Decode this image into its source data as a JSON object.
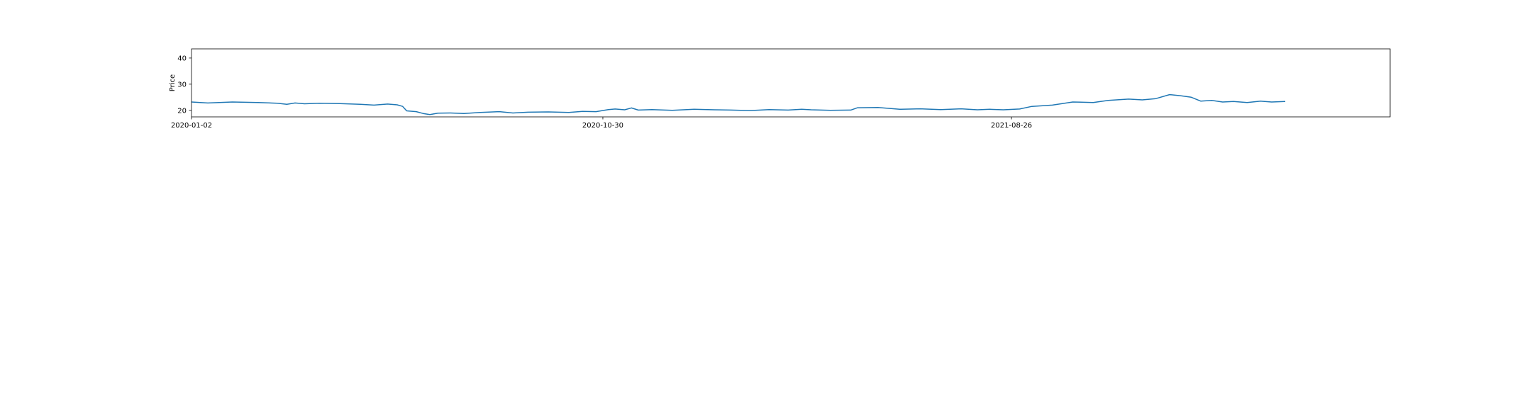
{
  "chart_data": {
    "type": "line",
    "title": "",
    "xlabel": "",
    "ylabel": "Price",
    "ylim": [
      17.5,
      43.5
    ],
    "xlim": [
      "2020-01-02",
      "2022-05-31"
    ],
    "grid": false,
    "legend": "none",
    "y_ticks": [
      20,
      30,
      40
    ],
    "x_ticks": [
      "2020-01-02",
      "2020-10-30",
      "2021-08-26"
    ],
    "series": [
      {
        "name": "",
        "color": "#1f77b4",
        "points": [
          [
            "2020-01-02",
            23.2
          ],
          [
            "2020-01-14",
            22.8
          ],
          [
            "2020-02-01",
            23.2
          ],
          [
            "2020-02-20",
            23.0
          ],
          [
            "2020-03-05",
            22.7
          ],
          [
            "2020-03-12",
            22.3
          ],
          [
            "2020-03-18",
            22.8
          ],
          [
            "2020-03-25",
            22.5
          ],
          [
            "2020-04-05",
            22.7
          ],
          [
            "2020-04-20",
            22.6
          ],
          [
            "2020-05-05",
            22.3
          ],
          [
            "2020-05-15",
            22.0
          ],
          [
            "2020-05-25",
            22.4
          ],
          [
            "2020-06-01",
            22.1
          ],
          [
            "2020-06-05",
            21.5
          ],
          [
            "2020-06-08",
            19.8
          ],
          [
            "2020-06-15",
            19.5
          ],
          [
            "2020-06-20",
            18.8
          ],
          [
            "2020-06-25",
            18.4
          ],
          [
            "2020-07-01",
            18.9
          ],
          [
            "2020-07-10",
            19.0
          ],
          [
            "2020-07-20",
            18.8
          ],
          [
            "2020-08-01",
            19.2
          ],
          [
            "2020-08-15",
            19.5
          ],
          [
            "2020-08-25",
            19.0
          ],
          [
            "2020-09-05",
            19.3
          ],
          [
            "2020-09-20",
            19.4
          ],
          [
            "2020-10-05",
            19.2
          ],
          [
            "2020-10-15",
            19.6
          ],
          [
            "2020-10-25",
            19.5
          ],
          [
            "2020-11-03",
            20.3
          ],
          [
            "2020-11-08",
            20.5
          ],
          [
            "2020-11-15",
            20.2
          ],
          [
            "2020-11-20",
            20.9
          ],
          [
            "2020-11-25",
            20.1
          ],
          [
            "2020-12-05",
            20.3
          ],
          [
            "2020-12-20",
            20.0
          ],
          [
            "2021-01-05",
            20.4
          ],
          [
            "2021-01-20",
            20.2
          ],
          [
            "2021-02-01",
            20.1
          ],
          [
            "2021-02-15",
            19.9
          ],
          [
            "2021-03-01",
            20.3
          ],
          [
            "2021-03-15",
            20.1
          ],
          [
            "2021-03-25",
            20.4
          ],
          [
            "2021-04-01",
            20.2
          ],
          [
            "2021-04-15",
            20.0
          ],
          [
            "2021-04-30",
            20.1
          ],
          [
            "2021-05-05",
            21.0
          ],
          [
            "2021-05-20",
            21.1
          ],
          [
            "2021-06-05",
            20.4
          ],
          [
            "2021-06-20",
            20.6
          ],
          [
            "2021-07-05",
            20.3
          ],
          [
            "2021-07-20",
            20.6
          ],
          [
            "2021-08-01",
            20.2
          ],
          [
            "2021-08-10",
            20.4
          ],
          [
            "2021-08-20",
            20.2
          ],
          [
            "2021-09-01",
            20.5
          ],
          [
            "2021-09-10",
            21.5
          ],
          [
            "2021-09-25",
            22.0
          ],
          [
            "2021-10-10",
            23.2
          ],
          [
            "2021-10-25",
            23.0
          ],
          [
            "2021-11-05",
            23.8
          ],
          [
            "2021-11-20",
            24.3
          ],
          [
            "2021-11-30",
            24.0
          ],
          [
            "2021-12-10",
            24.5
          ],
          [
            "2021-12-20",
            26.0
          ],
          [
            "2021-12-28",
            25.6
          ],
          [
            "2022-01-05",
            25.0
          ],
          [
            "2022-01-12",
            23.5
          ],
          [
            "2022-01-20",
            23.8
          ],
          [
            "2022-01-28",
            23.2
          ],
          [
            "2022-02-05",
            23.4
          ],
          [
            "2022-02-15",
            23.0
          ],
          [
            "2022-02-25",
            23.5
          ],
          [
            "2022-03-05",
            23.2
          ],
          [
            "2022-03-15",
            23.4
          ]
        ]
      }
    ]
  }
}
